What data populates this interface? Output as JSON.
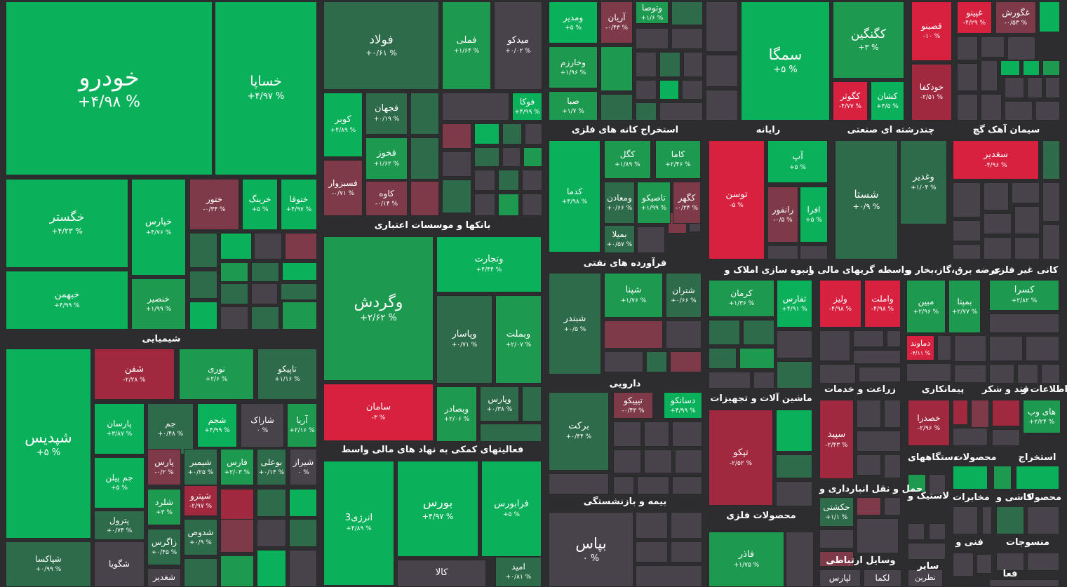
{
  "colors": {
    "up_strong": "#0bb15a",
    "up_mid": "#1e9a50",
    "up_weak": "#2e6b4a",
    "flat": "#48434a",
    "down_weak": "#7e3a48",
    "down_mid": "#a0283f",
    "down_strong": "#d8213f",
    "background": "#2d2c2e"
  },
  "chart_data": {
    "type": "treemap",
    "title": "",
    "sections": [
      "شیمیایی",
      "بانکها و موسسات اعتباری",
      "فعالیتهای کمکی به نهاد های مالی واسط",
      "استخراج کانه های فلزی",
      "رایانه",
      "چندرشته ای صنعتی",
      "سیمان آهک گچ",
      "فرآورده های نفتی",
      "انبوه سازی املاک و",
      "واسطه گریهای مالی و",
      "عرضه برق،گاز،بخار و",
      "کانی غیر فلزی",
      "دارویی",
      "ماشین آلات و تجهیزات",
      "زراعت و خدمات",
      "قند و شکر",
      "اطلاعات و",
      "بیمه و بازنشستگی",
      "محصولات فلزی",
      "حمل و نقل انبارداری و",
      "وسایل ارتباطی",
      "پیمانکاری",
      "دستگاههای",
      "محصولات",
      "استخراج",
      "لاستیک و",
      "مخابرات",
      "کاشی و",
      "محصولا",
      "فنی و",
      "منسوجات",
      "سایر",
      "فعا"
    ],
    "tiles": [
      {
        "name": "خودرو",
        "change": "+۴/۹۸ %",
        "value": 4.98
      },
      {
        "name": "خساپا",
        "change": "+۴/۹۷ %",
        "value": 4.97
      },
      {
        "name": "خگستر",
        "change": "+۴/۲۳ %",
        "value": 4.23
      },
      {
        "name": "خپارس",
        "change": "+۴/۷۶ %",
        "value": 4.76
      },
      {
        "name": "ختور",
        "change": "-۰/۳۴ %",
        "value": -0.34
      },
      {
        "name": "خرینگ",
        "change": "+۵ %",
        "value": 5
      },
      {
        "name": "ختوقا",
        "change": "+۴/۹۷ %",
        "value": 4.97
      },
      {
        "name": "خبهمن",
        "change": "+۴/۹۹ %",
        "value": 4.99
      },
      {
        "name": "خنصیر",
        "change": "+۱/۹۹ %",
        "value": 1.99
      },
      {
        "name": "شپدیس",
        "change": "+۵ %",
        "value": 5
      },
      {
        "name": "شفن",
        "change": "-۲/۲۸ %",
        "value": -2.28
      },
      {
        "name": "نوری",
        "change": "+۲/۶ %",
        "value": 2.6
      },
      {
        "name": "تاپیکو",
        "change": "+۱/۱۶ %",
        "value": 1.16
      },
      {
        "name": "پارسان",
        "change": "+۳/۸۷ %",
        "value": 3.87
      },
      {
        "name": "جم",
        "change": "+۰/۴۸ %",
        "value": 0.48
      },
      {
        "name": "شجم",
        "change": "+۴/۹۹ %",
        "value": 4.99
      },
      {
        "name": "شاراک",
        "change": "۰ %",
        "value": 0
      },
      {
        "name": "آریا",
        "change": "+۲/۱۶ %",
        "value": 2.16
      },
      {
        "name": "جم پیلن",
        "change": "+۵ %",
        "value": 5
      },
      {
        "name": "پارس",
        "change": "-۰/۲ %",
        "value": -0.2
      },
      {
        "name": "شیمیر",
        "change": "+۰/۲۵ %",
        "value": 0.25
      },
      {
        "name": "فارس",
        "change": "+۲/۰۳ %",
        "value": 2.03
      },
      {
        "name": "بوعلی",
        "change": "+۰/۱۴ %",
        "value": 0.14
      },
      {
        "name": "شیراز",
        "change": "۰ %",
        "value": 0
      },
      {
        "name": "شلرد",
        "change": "+۳ %",
        "value": 3
      },
      {
        "name": "شپترو",
        "change": "-۲/۹۷ %",
        "value": -2.97
      },
      {
        "name": "پترول",
        "change": "+۰/۷۴ %",
        "value": 0.74
      },
      {
        "name": "زاگرس",
        "change": "+۰/۴۵ %",
        "value": 0.45
      },
      {
        "name": "شدوص",
        "change": "+۰/۹ %",
        "value": 0.9
      },
      {
        "name": "شپاکسا",
        "change": "+۰/۹۹ %",
        "value": 0.99
      },
      {
        "name": "شگویا",
        "change": "",
        "value": null
      },
      {
        "name": "شغدیر",
        "change": "",
        "value": null
      },
      {
        "name": "فولاد",
        "change": "+۰/۶۱ %",
        "value": 0.61
      },
      {
        "name": "فملی",
        "change": "+۱/۶۴ %",
        "value": 1.64
      },
      {
        "name": "میدکو",
        "change": "+۰/۰۲ %",
        "value": 0.02
      },
      {
        "name": "فوکا",
        "change": "+۴/۹۹ %",
        "value": 4.99
      },
      {
        "name": "کوبر",
        "change": "+۴/۸۹ %",
        "value": 4.89
      },
      {
        "name": "فجهان",
        "change": "+۰/۱۹ %",
        "value": 0.19
      },
      {
        "name": "فخوز",
        "change": "+۱/۶۲ %",
        "value": 1.62
      },
      {
        "name": "فسبزوار",
        "change": "-۰/۷۱ %",
        "value": -0.71
      },
      {
        "name": "کاوه",
        "change": "-۰/۱۴ %",
        "value": -0.14
      },
      {
        "name": "وگردش",
        "change": "+۲/۶۲ %",
        "value": 2.62
      },
      {
        "name": "وتجارت",
        "change": "+۴/۴۴ %",
        "value": 4.44
      },
      {
        "name": "وپاسار",
        "change": "+۰/۷۱ %",
        "value": 0.71
      },
      {
        "name": "وبملت",
        "change": "+۲/۰۷ %",
        "value": 2.07
      },
      {
        "name": "سامان",
        "change": "-۳ %",
        "value": -3
      },
      {
        "name": "وبصادر",
        "change": "+۲/۰۶ %",
        "value": 2.06
      },
      {
        "name": "وپارس",
        "change": "+۰/۳۸ %",
        "value": 0.38
      },
      {
        "name": "انرژی3",
        "change": "+۴/۸۹ %",
        "value": 4.89
      },
      {
        "name": "بورس",
        "change": "+۴/۹۷ %",
        "value": 4.97
      },
      {
        "name": "فرابورس",
        "change": "+۵ %",
        "value": 5
      },
      {
        "name": "کالا",
        "change": "",
        "value": null
      },
      {
        "name": "امید",
        "change": "+۰/۸۱ %",
        "value": 0.81
      },
      {
        "name": "ومدیر",
        "change": "+۵ %",
        "value": 5
      },
      {
        "name": "آریان",
        "change": "-۰/۴۳ %",
        "value": -0.43
      },
      {
        "name": "وتوصا",
        "change": "+۱/۶ %",
        "value": 1.6
      },
      {
        "name": "وخارزم",
        "change": "+۱/۹۶ %",
        "value": 1.96
      },
      {
        "name": "صبا",
        "change": "+۱/۷ %",
        "value": 1.7
      },
      {
        "name": "سمگا",
        "change": "+۵ %",
        "value": 5
      },
      {
        "name": "کگنگین",
        "change": "+۳ %",
        "value": 3
      },
      {
        "name": "کگوثر",
        "change": "-۴/۷۷ %",
        "value": -4.77
      },
      {
        "name": "کشان",
        "change": "+۴/۵ %",
        "value": 4.5
      },
      {
        "name": "قصینو",
        "change": "-۱۰ %",
        "value": -10
      },
      {
        "name": "غپینو",
        "change": "-۴/۲۹ %",
        "value": -4.29
      },
      {
        "name": "غگورش",
        "change": "-۰/۵۳ %",
        "value": -0.53
      },
      {
        "name": "خودکفا",
        "change": "-۲/۵۱ %",
        "value": -2.51
      },
      {
        "name": "کدما",
        "change": "+۴/۹۸ %",
        "value": 4.98
      },
      {
        "name": "کگل",
        "change": "+۱/۸۹ %",
        "value": 1.89
      },
      {
        "name": "کاما",
        "change": "+۲/۴۶ %",
        "value": 2.46
      },
      {
        "name": "ومعادن",
        "change": "+۰/۶۶ %",
        "value": 0.66
      },
      {
        "name": "تاصیکو",
        "change": "+۱/۹۹ %",
        "value": 1.99
      },
      {
        "name": "کگهر",
        "change": "-۰/۲۴ %",
        "value": -0.24
      },
      {
        "name": "بمیلا",
        "change": "+۰/۵۷ %",
        "value": 0.57
      },
      {
        "name": "توسن",
        "change": "-۵ %",
        "value": -5
      },
      {
        "name": "آپ",
        "change": "+۵ %",
        "value": 5
      },
      {
        "name": "رانفور",
        "change": "-۰/۵ %",
        "value": -0.5
      },
      {
        "name": "افرا",
        "change": "+۵ %",
        "value": 5
      },
      {
        "name": "شستا",
        "change": "+۰/۹ %",
        "value": 0.9
      },
      {
        "name": "وغدیر",
        "change": "+۱/۰۴ %",
        "value": 1.04
      },
      {
        "name": "سغدیر",
        "change": "-۴/۹۶ %",
        "value": -4.96
      },
      {
        "name": "شبندر",
        "change": "+۰/۵ %",
        "value": 0.5
      },
      {
        "name": "شپنا",
        "change": "+۱/۷۶ %",
        "value": 1.76
      },
      {
        "name": "شتران",
        "change": "+۰/۶۶ %",
        "value": 0.66
      },
      {
        "name": "کرمان",
        "change": "+۱/۳۶ %",
        "value": 1.36
      },
      {
        "name": "ثفارس",
        "change": "+۴/۹۱ %",
        "value": 4.91
      },
      {
        "name": "ولیز",
        "change": "-۴/۹۸ %",
        "value": -4.98
      },
      {
        "name": "واملت",
        "change": "-۴/۹۸ %",
        "value": -4.98
      },
      {
        "name": "مبین",
        "change": "+۲/۹۶ %",
        "value": 2.96
      },
      {
        "name": "بمپنا",
        "change": "+۲/۷۷ %",
        "value": 2.77
      },
      {
        "name": "دماوند",
        "change": "-۴/۱۱ %",
        "value": -4.11
      },
      {
        "name": "کسرا",
        "change": "+۲/۸۲ %",
        "value": 2.82
      },
      {
        "name": "تیپیکو",
        "change": "-۰/۴۳ %",
        "value": -0.43
      },
      {
        "name": "دسانکو",
        "change": "+۴/۹۹ %",
        "value": 4.99
      },
      {
        "name": "برکت",
        "change": "+۰/۴۴ %",
        "value": 0.44
      },
      {
        "name": "تپکو",
        "change": "-۲/۵۲ %",
        "value": -2.52
      },
      {
        "name": "سپید",
        "change": "-۲/۴۳ %",
        "value": -2.43
      },
      {
        "name": "خصدرا",
        "change": "-۲/۹۶ %",
        "value": -2.96
      },
      {
        "name": "های وب",
        "change": "+۲/۲۴ %",
        "value": 2.24
      },
      {
        "name": "حکشتی",
        "change": "+۱/۱ %",
        "value": 1.1
      },
      {
        "name": "بپاس",
        "change": "۰ %",
        "value": 0
      },
      {
        "name": "فاذر",
        "change": "+۱/۷۵ %",
        "value": 1.75
      },
      {
        "name": "لپارس",
        "change": "",
        "value": null
      },
      {
        "name": "لکما",
        "change": "",
        "value": null
      },
      {
        "name": "نطرین",
        "change": "",
        "value": null
      }
    ]
  }
}
